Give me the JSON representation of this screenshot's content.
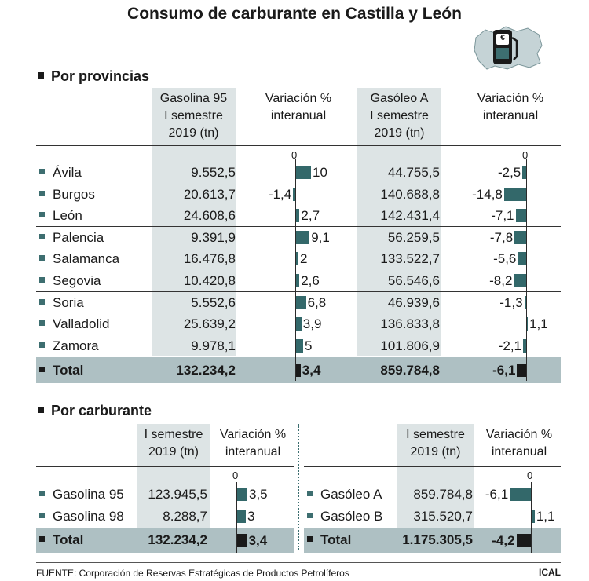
{
  "title": "Consumo de carburante en Castilla y León",
  "section1": {
    "label": "Por provincias",
    "headers": {
      "gas_l1": "Gasolina 95",
      "gas_l2": "I semestre",
      "gas_l3": "2019 (tn)",
      "var_l1": "Variación %",
      "var_l2": "interanual",
      "diesel_l1": "Gasóleo A",
      "diesel_l2": "I semestre",
      "diesel_l3": "2019 (tn)"
    },
    "zero": "0"
  },
  "section2": {
    "label": "Por carburante",
    "headers": {
      "sem_l1": "I semestre",
      "sem_l2": "2019 (tn)",
      "var_l1": "Variación %",
      "var_l2": "interanual"
    },
    "zero": "0"
  },
  "logo_symbol": "€",
  "footer": {
    "source": "FUENTE: Corporación de Reservas Estratégicas de Productos Petrolíferos",
    "credit": "ICAL"
  },
  "chart_data": [
    {
      "type": "table",
      "title": "Consumo de carburante en Castilla y León",
      "subtitle": "Por provincias",
      "categories": [
        "Ávila",
        "Burgos",
        "León",
        "Palencia",
        "Salamanca",
        "Segovia",
        "Soria",
        "Valladolid",
        "Zamora"
      ],
      "gasolina95": [
        "9.552,5",
        "20.613,7",
        "24.608,6",
        "9.391,9",
        "16.476,8",
        "10.420,8",
        "5.552,6",
        "25.639,2",
        "9.978,1"
      ],
      "var_gasolina": [
        10,
        -1.4,
        2.7,
        9.1,
        2,
        2.6,
        6.8,
        3.9,
        5
      ],
      "var_gasolina_labels": [
        "10",
        "-1,4",
        "2,7",
        "9,1",
        "2",
        "2,6",
        "6,8",
        "3,9",
        "5"
      ],
      "gasoleoA": [
        "44.755,5",
        "140.688,8",
        "142.431,4",
        "56.259,5",
        "133.522,7",
        "56.546,6",
        "46.939,6",
        "136.833,8",
        "101.806,9"
      ],
      "var_gasoleo": [
        -2.5,
        -14.8,
        -7.1,
        -7.8,
        -5.6,
        -8.2,
        -1.3,
        1.1,
        -2.1
      ],
      "var_gasoleo_labels": [
        "-2,5",
        "-14,8",
        "-7,1",
        "-7,8",
        "-5,6",
        "-8,2",
        "-1,3",
        "1,1",
        "-2,1"
      ],
      "total": {
        "label": "Total",
        "gasolina95": "132.234,2",
        "var_gasolina": 3.4,
        "var_gasolina_label": "3,4",
        "gasoleoA": "859.784,8",
        "var_gasoleo": -6.1,
        "var_gasoleo_label": "-6,1"
      }
    },
    {
      "type": "table",
      "subtitle": "Por carburante",
      "gasolina": {
        "categories": [
          "Gasolina 95",
          "Gasolina 98"
        ],
        "values": [
          "123.945,5",
          "8.288,7"
        ],
        "variation": [
          3.5,
          3
        ],
        "variation_labels": [
          "3,5",
          "3"
        ],
        "total": {
          "label": "Total",
          "value": "132.234,2",
          "variation": 3.4,
          "variation_label": "3,4"
        }
      },
      "gasoleo": {
        "categories": [
          "Gasóleo A",
          "Gasóleo B"
        ],
        "values": [
          "859.784,8",
          "315.520,7"
        ],
        "variation": [
          -6.1,
          1.1
        ],
        "variation_labels": [
          "-6,1",
          "1,1"
        ],
        "total": {
          "label": "Total",
          "value": "1.175.305,5",
          "variation": -4.2,
          "variation_label": "-4,2"
        }
      }
    }
  ]
}
